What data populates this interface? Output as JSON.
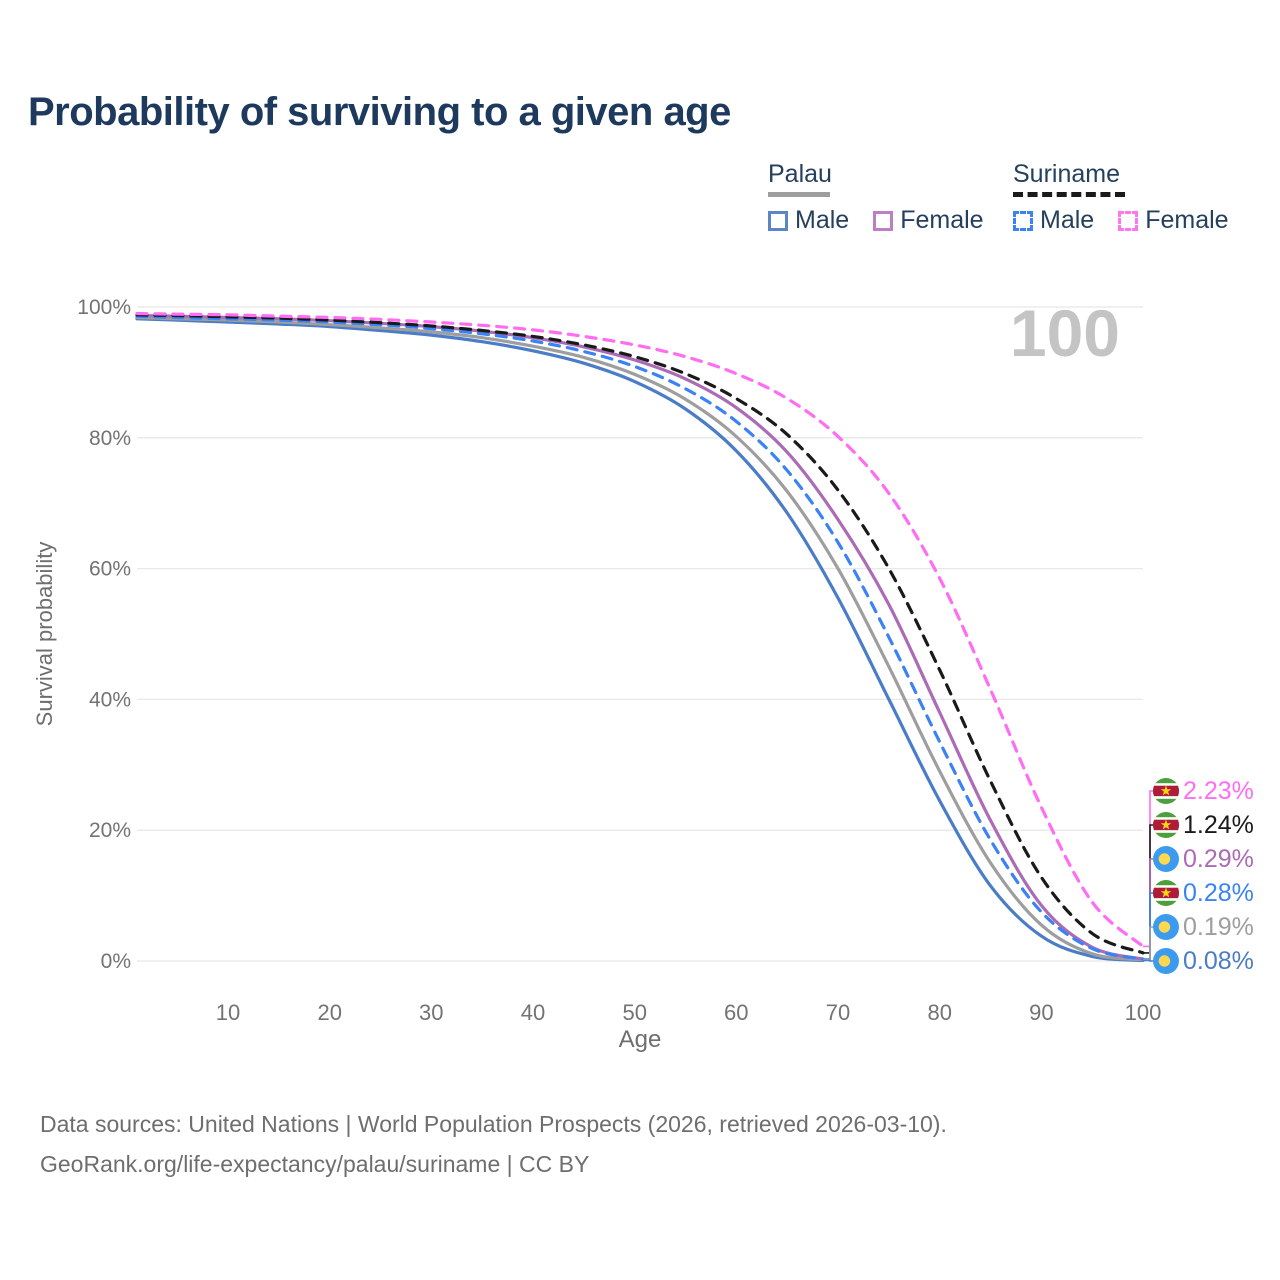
{
  "title": "Probability of surviving to a given age",
  "watermark": "100",
  "legend": {
    "groups": [
      {
        "name": "Palau",
        "underline_style": "solid",
        "underline_color": "#9e9e9e",
        "items": [
          {
            "label": "Male",
            "color": "#5b85c4",
            "dashed": false
          },
          {
            "label": "Female",
            "color": "#bc7fc4",
            "dashed": false
          }
        ]
      },
      {
        "name": "Suriname",
        "underline_style": "dashed",
        "underline_color": "#1a1a1a",
        "items": [
          {
            "label": "Male",
            "color": "#3b82f6",
            "dashed": true
          },
          {
            "label": "Female",
            "color": "#ff77f0",
            "dashed": true
          }
        ]
      }
    ]
  },
  "footer": {
    "line1": "Data sources: United Nations | World Population Prospects (2026, retrieved 2026-03-10).",
    "line2": "GeoRank.org/life-expectancy/palau/suriname | CC BY"
  },
  "chart_data": {
    "type": "line",
    "title": "Probability of surviving to a given age",
    "xlabel": "Age",
    "ylabel": "Survival probability",
    "xlim": [
      1,
      100
    ],
    "ylim": [
      0,
      100
    ],
    "grid": "horizontal",
    "legend_position": "top-right",
    "x_ticks": [
      10,
      20,
      30,
      40,
      50,
      60,
      70,
      80,
      90,
      100
    ],
    "x_tick_labels": [
      "10",
      "20",
      "30",
      "40",
      "50",
      "60",
      "70",
      "80",
      "90",
      "100"
    ],
    "y_ticks": [
      {
        "value": 0,
        "label": "0%"
      },
      {
        "value": 20,
        "label": "20%"
      },
      {
        "value": 40,
        "label": "40%"
      },
      {
        "value": 60,
        "label": "60%"
      },
      {
        "value": 80,
        "label": "80%"
      },
      {
        "value": 100,
        "label": "100%"
      }
    ],
    "x": [
      1,
      5,
      10,
      15,
      20,
      25,
      30,
      35,
      40,
      45,
      50,
      55,
      60,
      65,
      70,
      75,
      80,
      85,
      90,
      95,
      100
    ],
    "series": [
      {
        "name": "Palau Male",
        "country": "Palau",
        "sex": "Male",
        "color": "#4a7cc7",
        "dashed": false,
        "flag": "palau",
        "end_label": "0.08%",
        "end_value": 0.08,
        "values": [
          98.2,
          98.0,
          97.7,
          97.4,
          97.0,
          96.4,
          95.7,
          94.7,
          93.3,
          91.4,
          88.6,
          84.4,
          78.0,
          68.5,
          55.5,
          40.0,
          24.5,
          11.5,
          3.8,
          0.7,
          0.08
        ]
      },
      {
        "name": "Palau",
        "country": "Palau",
        "sex": "Both",
        "color": "#9e9e9e",
        "dashed": false,
        "flag": "palau",
        "end_label": "0.19%",
        "end_value": 0.19,
        "values": [
          98.4,
          98.2,
          98.0,
          97.7,
          97.3,
          96.8,
          96.2,
          95.3,
          94.0,
          92.3,
          89.7,
          85.9,
          80.2,
          71.8,
          60.0,
          45.0,
          29.0,
          15.0,
          5.5,
          1.1,
          0.19
        ]
      },
      {
        "name": "Palau Female",
        "country": "Palau",
        "sex": "Female",
        "color": "#ab6bb5",
        "dashed": false,
        "flag": "palau",
        "end_label": "0.29%",
        "end_value": 0.29,
        "values": [
          98.7,
          98.6,
          98.4,
          98.2,
          97.9,
          97.5,
          97.0,
          96.3,
          95.3,
          93.9,
          91.9,
          89.0,
          84.6,
          77.8,
          67.5,
          54.5,
          38.0,
          21.5,
          8.5,
          2.1,
          0.29
        ]
      },
      {
        "name": "Suriname Male",
        "country": "Suriname",
        "sex": "Male",
        "color": "#3b82f6",
        "dashed": true,
        "flag": "suriname",
        "end_label": "0.28%",
        "end_value": 0.28,
        "values": [
          98.6,
          98.4,
          98.2,
          98.0,
          97.7,
          97.3,
          96.7,
          95.9,
          94.8,
          93.2,
          90.9,
          87.5,
          82.5,
          75.0,
          64.0,
          49.5,
          33.5,
          18.5,
          7.5,
          1.9,
          0.28
        ]
      },
      {
        "name": "Suriname",
        "country": "Suriname",
        "sex": "Both",
        "color": "#1a1a1a",
        "dashed": true,
        "flag": "suriname",
        "end_label": "1.24%",
        "end_value": 1.24,
        "values": [
          98.8,
          98.7,
          98.5,
          98.3,
          98.0,
          97.6,
          97.1,
          96.4,
          95.5,
          94.2,
          92.4,
          89.8,
          86.0,
          80.5,
          72.0,
          60.0,
          44.5,
          27.5,
          12.8,
          4.2,
          1.24
        ]
      },
      {
        "name": "Suriname Female",
        "country": "Suriname",
        "sex": "Female",
        "color": "#ff6df2",
        "dashed": true,
        "flag": "suriname",
        "end_label": "2.23%",
        "end_value": 2.23,
        "values": [
          99.0,
          98.9,
          98.8,
          98.6,
          98.4,
          98.1,
          97.7,
          97.2,
          96.5,
          95.5,
          94.2,
          92.4,
          89.8,
          86.0,
          80.2,
          71.5,
          58.5,
          41.5,
          23.5,
          9.0,
          2.23
        ]
      }
    ],
    "flag_colors": {
      "palau_blue": "#3d9bef",
      "palau_yellow": "#ffd84d",
      "suriname_green": "#4c9f3c",
      "suriname_white": "#ffffff",
      "suriname_red": "#ae1c3a",
      "suriname_star": "#fdd216"
    }
  }
}
